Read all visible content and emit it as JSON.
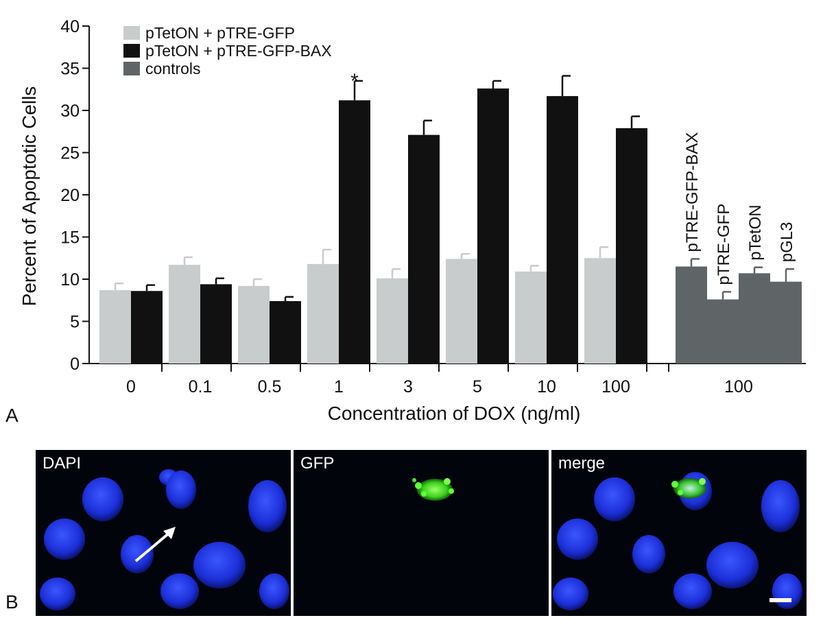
{
  "chart_data": {
    "type": "bar",
    "title": "",
    "xlabel": "Concentration of DOX (ng/ml)",
    "ylabel": "Percent of Apoptotic Cells",
    "ylim": [
      0,
      40
    ],
    "yticks": [
      0,
      5,
      10,
      15,
      20,
      25,
      30,
      35,
      40
    ],
    "legend_position": "top-left",
    "categories": [
      "0",
      "0.1",
      "0.5",
      "1",
      "3",
      "5",
      "10",
      "100"
    ],
    "series": [
      {
        "name": "pTetON + pTRE-GFP",
        "color": "#c8cccc",
        "values": [
          8.7,
          11.7,
          9.2,
          11.8,
          10.1,
          12.4,
          10.9,
          12.5
        ],
        "errors": [
          0.8,
          0.9,
          0.8,
          1.7,
          1.1,
          0.6,
          0.7,
          1.3
        ]
      },
      {
        "name": "pTetON + pTRE-GFP-BAX",
        "color": "#111111",
        "values": [
          8.6,
          9.4,
          7.4,
          31.2,
          27.1,
          32.6,
          31.7,
          27.9
        ],
        "errors": [
          0.7,
          0.7,
          0.5,
          2.3,
          1.7,
          0.9,
          2.4,
          1.4
        ]
      }
    ],
    "controls": {
      "name": "controls",
      "color": "#5f6466",
      "category": "100",
      "labels": [
        "pTRE-GFP-BAX",
        "pTRE-GFP",
        "pTetON",
        "pGL3"
      ],
      "values": [
        11.5,
        7.6,
        10.7,
        9.7
      ],
      "errors": [
        0.9,
        0.9,
        0.7,
        1.5
      ]
    },
    "annotations": [
      {
        "text": "*",
        "category": "1",
        "series": "pTetON + pTRE-GFP-BAX"
      }
    ]
  },
  "panels": {
    "a_label": "A",
    "b_label": "B",
    "micrographs": [
      {
        "title": "DAPI"
      },
      {
        "title": "GFP"
      },
      {
        "title": "merge"
      }
    ]
  }
}
